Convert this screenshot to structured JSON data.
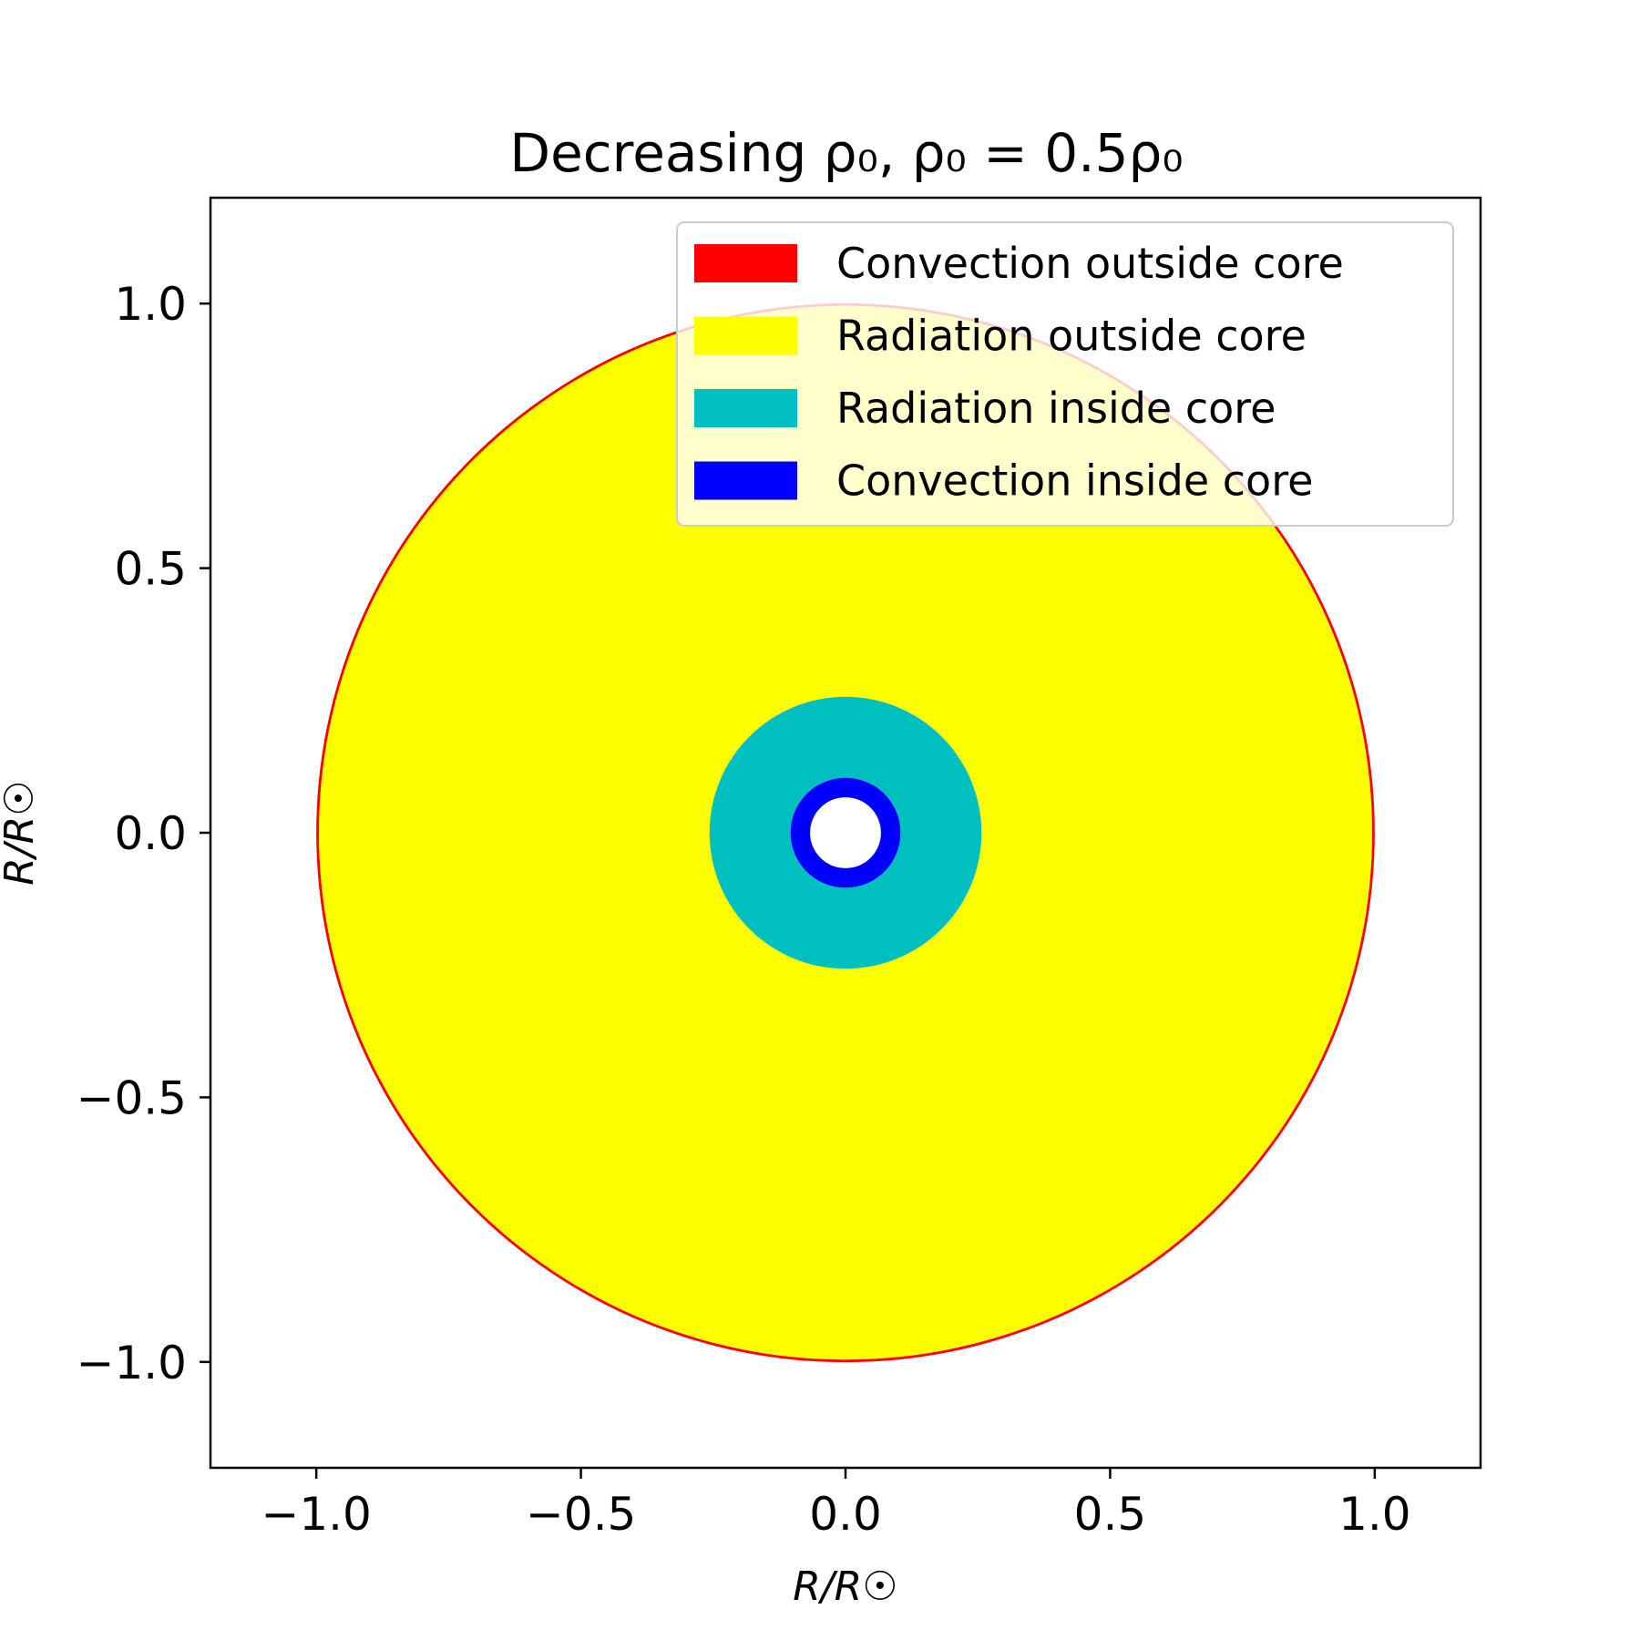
{
  "chart_data": {
    "type": "area",
    "title": "Decreasing ρ₀, ρ₀ = 0.5ρ₀",
    "xlabel": "R/R☉",
    "ylabel": "R/R☉",
    "xlim": [
      -1.2,
      1.2
    ],
    "ylim": [
      -1.2,
      1.2
    ],
    "xticks": [
      -1.0,
      -0.5,
      0.0,
      0.5,
      1.0
    ],
    "yticks": [
      -1.0,
      -0.5,
      0.0,
      0.5,
      1.0
    ],
    "xtick_labels": [
      "−1.0",
      "−0.5",
      "0.0",
      "0.5",
      "1.0"
    ],
    "ytick_labels": [
      "−1.0",
      "−0.5",
      "0.0",
      "0.5",
      "1.0"
    ],
    "grid": false,
    "legend_position": "top-right",
    "series": [
      {
        "name": "Convection outside core",
        "color": "#ff0000",
        "shells": [
          [
            0.995,
            1.0
          ]
        ]
      },
      {
        "name": "Radiation outside core",
        "color": "#ffff00",
        "shells": [
          [
            0.257,
            0.995
          ]
        ]
      },
      {
        "name": "Radiation inside core",
        "color": "#00bfbf",
        "shells": [
          [
            0.104,
            0.257
          ]
        ]
      },
      {
        "name": "Convection inside core",
        "color": "#0000ff",
        "shells": [
          [
            0.067,
            0.104
          ]
        ]
      }
    ]
  }
}
